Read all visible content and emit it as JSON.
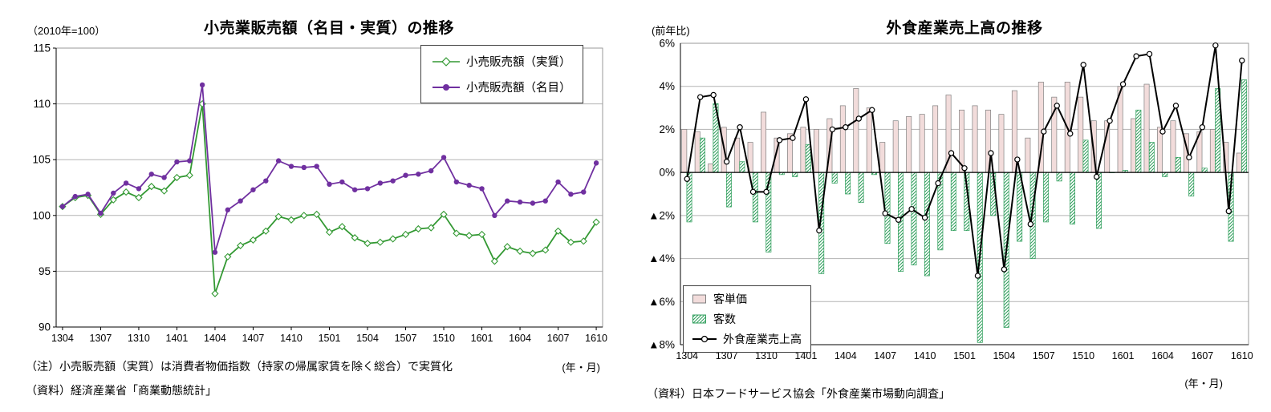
{
  "chart_data": [
    {
      "type": "line",
      "title": "小売業販売額（名目・実質）の推移",
      "y_unit_label": "（2010年=100）",
      "x_unit_label": "(年・月)",
      "note": "（注）小売販売額（実質）は消費者物価指数（持家の帰属家賃を除く総合）で実質化",
      "source": "（資料）経済産業省「商業動態統計」",
      "ylim": [
        90,
        115
      ],
      "yticks": [
        90,
        95,
        100,
        105,
        110,
        115
      ],
      "grid": true,
      "legend_position": "top-right",
      "x_tick_step": 3,
      "x": [
        "1304",
        "1305",
        "1306",
        "1307",
        "1308",
        "1309",
        "1310",
        "1311",
        "1312",
        "1401",
        "1402",
        "1403",
        "1404",
        "1405",
        "1406",
        "1407",
        "1408",
        "1409",
        "1410",
        "1411",
        "1412",
        "1501",
        "1502",
        "1503",
        "1504",
        "1505",
        "1506",
        "1507",
        "1508",
        "1509",
        "1510",
        "1511",
        "1512",
        "1601",
        "1602",
        "1603",
        "1604",
        "1605",
        "1606",
        "1607",
        "1608",
        "1609",
        "1610"
      ],
      "series": [
        {
          "name": "小売販売額（実質）",
          "marker": "diamond-open",
          "color": "#339933",
          "values": [
            100.8,
            101.6,
            101.8,
            100.1,
            101.4,
            102.1,
            101.6,
            102.6,
            102.2,
            103.4,
            103.6,
            110.0,
            93.0,
            96.3,
            97.3,
            97.8,
            98.6,
            99.9,
            99.6,
            100.0,
            100.1,
            98.5,
            99.0,
            98.0,
            97.5,
            97.6,
            97.9,
            98.3,
            98.8,
            98.9,
            100.1,
            98.4,
            98.2,
            98.3,
            95.9,
            97.2,
            96.8,
            96.6,
            96.9,
            98.6,
            97.6,
            97.7,
            99.4
          ]
        },
        {
          "name": "小売販売額（名目）",
          "marker": "circle-filled",
          "color": "#7030A0",
          "values": [
            100.8,
            101.7,
            101.9,
            100.2,
            102.0,
            102.9,
            102.4,
            103.7,
            103.4,
            104.8,
            104.9,
            111.7,
            96.7,
            100.5,
            101.3,
            102.3,
            103.1,
            104.9,
            104.4,
            104.3,
            104.4,
            102.8,
            103.0,
            102.3,
            102.4,
            102.9,
            103.1,
            103.6,
            103.7,
            104.0,
            105.2,
            103.0,
            102.7,
            102.4,
            100.0,
            101.3,
            101.2,
            101.1,
            101.3,
            103.0,
            101.9,
            102.1,
            104.7
          ]
        }
      ]
    },
    {
      "type": "bar+line",
      "title": "外食産業売上高の推移",
      "y_unit_label": "(前年比)",
      "x_unit_label": "(年・月)",
      "source": "（資料）日本フードサービス協会「外食産業市場動向調査」",
      "ylim": [
        -8,
        6
      ],
      "yticks": [
        6,
        4,
        2,
        0,
        -2,
        -4,
        -6,
        -8
      ],
      "ytick_labels": [
        "6%",
        "4%",
        "2%",
        "0%",
        "▲2%",
        "▲4%",
        "▲6%",
        "▲8%"
      ],
      "grid": true,
      "legend_position": "bottom-left",
      "x_tick_step": 3,
      "x": [
        "1304",
        "1305",
        "1306",
        "1307",
        "1308",
        "1309",
        "1310",
        "1311",
        "1312",
        "1401",
        "1402",
        "1403",
        "1404",
        "1405",
        "1406",
        "1407",
        "1408",
        "1409",
        "1410",
        "1411",
        "1412",
        "1501",
        "1502",
        "1503",
        "1504",
        "1505",
        "1506",
        "1507",
        "1508",
        "1509",
        "1510",
        "1511",
        "1512",
        "1601",
        "1602",
        "1603",
        "1604",
        "1605",
        "1606",
        "1607",
        "1608",
        "1609",
        "1610"
      ],
      "series": [
        {
          "name": "客単価",
          "render": "bar",
          "fill": "solid",
          "color": "#F2DCDB",
          "border": "#808080",
          "values": [
            2.0,
            1.9,
            0.4,
            2.1,
            1.6,
            1.4,
            2.8,
            1.6,
            1.8,
            2.1,
            2.0,
            2.5,
            3.1,
            3.9,
            3.0,
            1.4,
            2.4,
            2.6,
            2.7,
            3.1,
            3.6,
            2.9,
            3.1,
            2.9,
            2.7,
            3.8,
            1.6,
            4.2,
            3.5,
            4.2,
            3.5,
            2.4,
            2.4,
            4.0,
            2.5,
            4.1,
            2.1,
            2.4,
            1.8,
            1.9,
            2.0,
            1.4,
            0.9
          ]
        },
        {
          "name": "客数",
          "render": "bar",
          "fill": "hatch",
          "color": "#2E9E5B",
          "values": [
            -2.3,
            1.6,
            3.2,
            -1.6,
            0.5,
            -2.3,
            -3.7,
            -0.1,
            -0.2,
            1.3,
            -4.7,
            -0.5,
            -1.0,
            -1.4,
            -0.1,
            -3.3,
            -4.6,
            -4.3,
            -4.8,
            -3.6,
            -2.7,
            -2.7,
            -7.9,
            -2.0,
            -7.2,
            -3.2,
            -4.0,
            -2.3,
            -0.4,
            -2.4,
            1.5,
            -2.6,
            0.0,
            0.1,
            2.9,
            1.4,
            -0.2,
            0.7,
            -1.1,
            0.2,
            3.9,
            -3.2,
            4.3
          ]
        },
        {
          "name": "外食産業売上高",
          "render": "line",
          "marker": "circle-open",
          "color": "#000000",
          "values": [
            -0.3,
            3.5,
            3.6,
            0.5,
            2.1,
            -0.9,
            -0.9,
            1.5,
            1.6,
            3.4,
            -2.7,
            2.0,
            2.1,
            2.5,
            2.9,
            -1.9,
            -2.2,
            -1.7,
            -2.1,
            -0.5,
            0.9,
            0.2,
            -4.8,
            0.9,
            -4.5,
            0.6,
            -2.4,
            1.9,
            3.1,
            1.8,
            5.0,
            -0.2,
            2.4,
            4.1,
            5.4,
            5.5,
            1.9,
            3.1,
            0.7,
            2.1,
            5.9,
            -1.8,
            5.2
          ]
        }
      ]
    }
  ]
}
